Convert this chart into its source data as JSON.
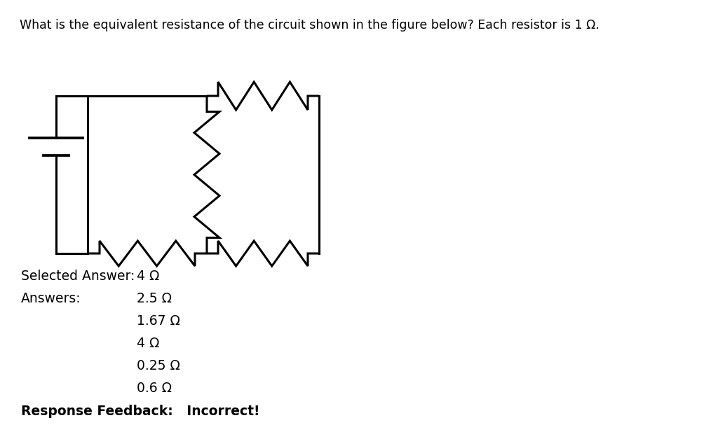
{
  "title_text": "What is the equivalent resistance of the circuit shown in the figure below? Each resistor is 1 Ω.",
  "selected_answer_label": "Selected Answer:",
  "selected_answer_value": "4 Ω",
  "answers_label": "Answers:",
  "answers": [
    "2.5 Ω",
    "1.67 Ω",
    "4 Ω",
    "0.25 Ω",
    "0.6 Ω"
  ],
  "response_feedback": "Response Feedback:   Incorrect!",
  "bg_color": "#ffffff",
  "text_color": "#000000",
  "line_color": "#000000",
  "title_fontsize": 12.5,
  "body_fontsize": 13.5
}
